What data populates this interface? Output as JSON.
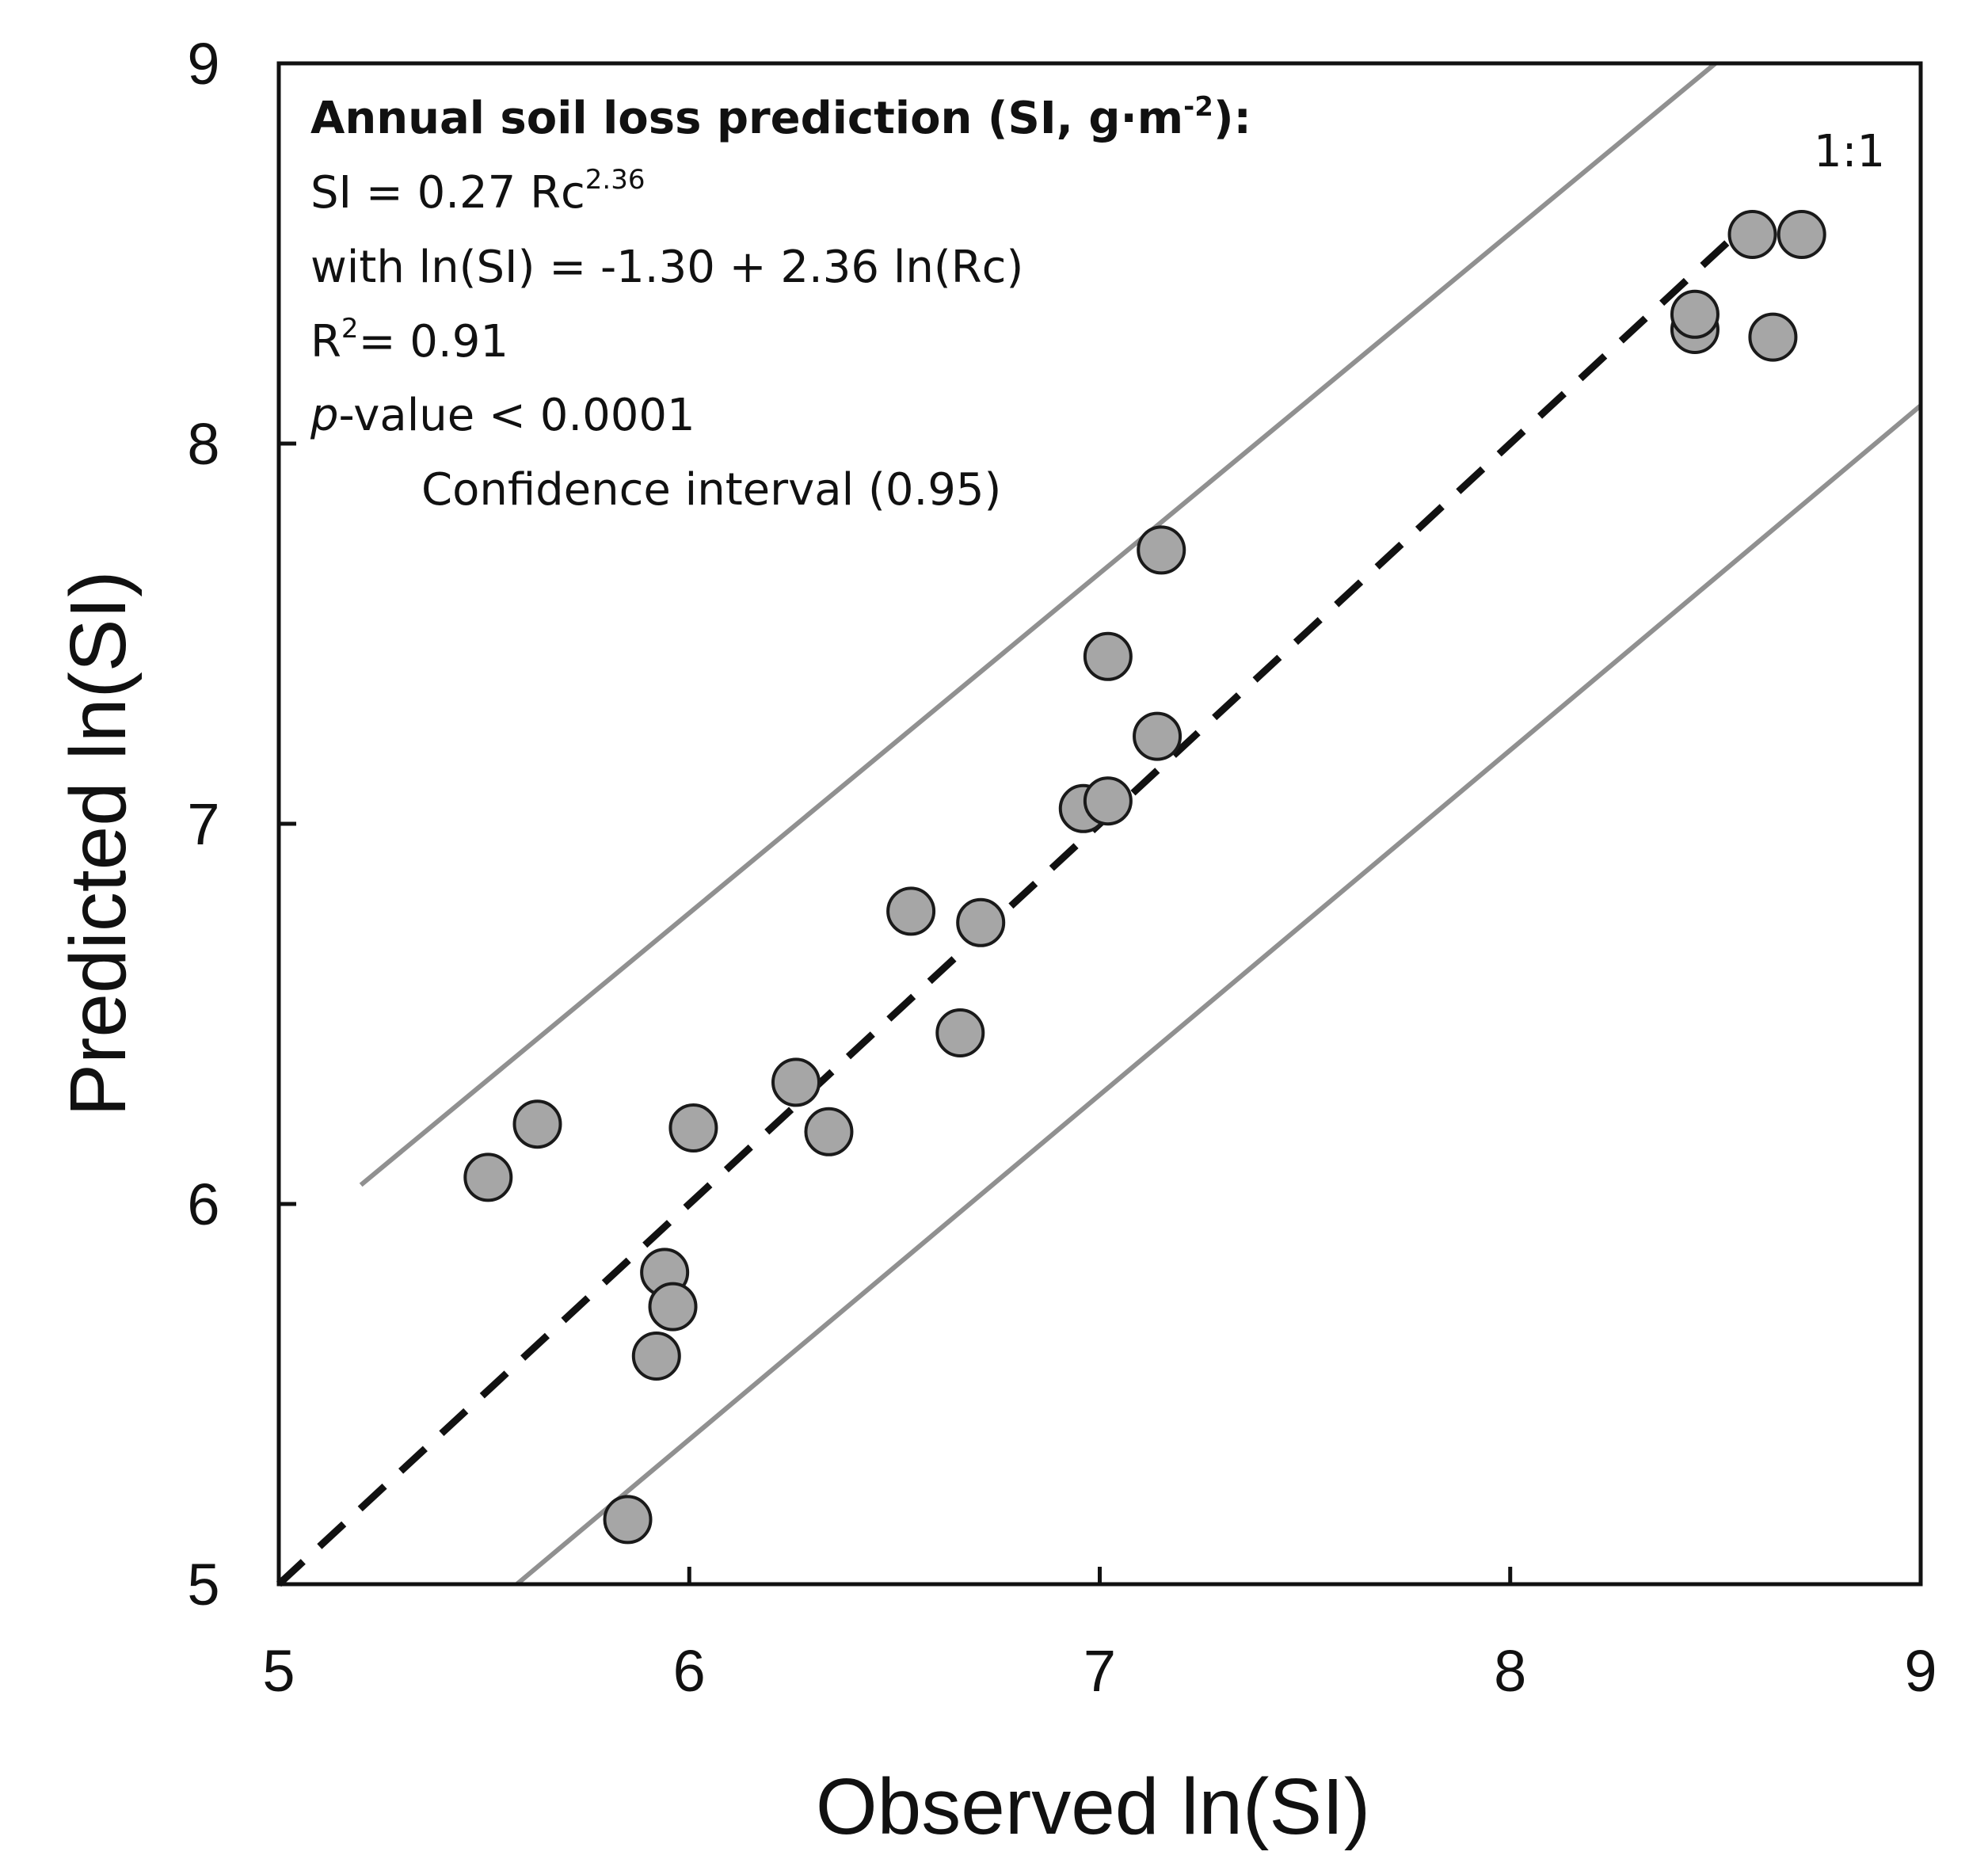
{
  "chart_data": {
    "type": "scatter",
    "xlabel": "Observed ln(SI)",
    "ylabel": "Predicted ln(SI)",
    "xlim": [
      5,
      9
    ],
    "ylim": [
      5,
      9
    ],
    "x_ticks": [
      "5",
      "6",
      "7",
      "8",
      "9"
    ],
    "y_ticks": [
      "5",
      "6",
      "7",
      "8",
      "9"
    ],
    "grid": false,
    "annotations": {
      "heading": "Annual soil loss prediction (SI, g·m",
      "heading_sup": "-2",
      "heading_end": "):",
      "eq1_main": "SI =  0.27 Rc",
      "eq1_sup": "2.36",
      "eq2": "with ln(SI) = -1.30 + 2.36 ln(Rc)",
      "r2_main": "R",
      "r2_sup": "2",
      "r2_value": "= 0.91",
      "p_italic": "p",
      "p_rest": "-value < 0.0001",
      "ci_label": "Confidence interval (0.95)",
      "one_to_one_label": "1:1"
    },
    "reference_lines": [
      {
        "kind": "one_to_one",
        "style": "dashed",
        "color": "#111111",
        "x": [
          5,
          8.6
        ],
        "y": [
          5,
          8.6
        ]
      },
      {
        "kind": "confidence_upper",
        "style": "solid",
        "color": "#909090",
        "x": [
          5.2,
          8.5
        ],
        "y": [
          6.05,
          9.0
        ]
      },
      {
        "kind": "confidence_lower",
        "style": "solid",
        "color": "#909090",
        "x": [
          5.58,
          9.0
        ],
        "y": [
          5.0,
          8.1
        ]
      }
    ],
    "series": [
      {
        "marker_color": "#a6a6a6",
        "marker_edge": "#1a1a1a",
        "points": [
          {
            "x": 5.51,
            "y": 6.07
          },
          {
            "x": 5.63,
            "y": 6.21
          },
          {
            "x": 5.85,
            "y": 5.17
          },
          {
            "x": 5.92,
            "y": 5.6
          },
          {
            "x": 5.94,
            "y": 5.82
          },
          {
            "x": 5.96,
            "y": 5.73
          },
          {
            "x": 6.01,
            "y": 6.2
          },
          {
            "x": 6.26,
            "y": 6.32
          },
          {
            "x": 6.34,
            "y": 6.19
          },
          {
            "x": 6.54,
            "y": 6.77
          },
          {
            "x": 6.66,
            "y": 6.45
          },
          {
            "x": 6.71,
            "y": 6.74
          },
          {
            "x": 6.96,
            "y": 7.04
          },
          {
            "x": 7.02,
            "y": 7.06
          },
          {
            "x": 7.02,
            "y": 7.44
          },
          {
            "x": 7.14,
            "y": 7.23
          },
          {
            "x": 7.15,
            "y": 7.72
          },
          {
            "x": 8.45,
            "y": 8.3
          },
          {
            "x": 8.45,
            "y": 8.34
          },
          {
            "x": 8.59,
            "y": 8.55
          },
          {
            "x": 8.64,
            "y": 8.28
          },
          {
            "x": 8.71,
            "y": 8.55
          }
        ]
      }
    ]
  }
}
